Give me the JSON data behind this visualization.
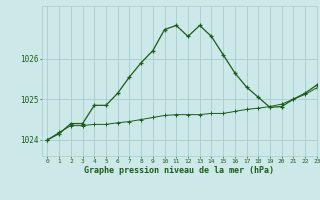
{
  "title": "Graphe pression niveau de la mer (hPa)",
  "background_color": "#cde8e8",
  "grid_color": "#aacccc",
  "line_color": "#1a5c1a",
  "x_labels": [
    "0",
    "1",
    "2",
    "3",
    "4",
    "5",
    "6",
    "7",
    "8",
    "9",
    "10",
    "11",
    "12",
    "13",
    "14",
    "15",
    "16",
    "17",
    "18",
    "19",
    "20",
    "21",
    "22",
    "23"
  ],
  "xlim": [
    -0.5,
    23
  ],
  "ylim": [
    1023.6,
    1027.3
  ],
  "yticks": [
    1024,
    1025,
    1026
  ],
  "line1_x": [
    0,
    1,
    2,
    3,
    4,
    5,
    6,
    7,
    8,
    9,
    10,
    11,
    12,
    13,
    14,
    15,
    16,
    17,
    18,
    19,
    20,
    21,
    22,
    23
  ],
  "line1_y": [
    1024.0,
    1024.15,
    1024.4,
    1024.4,
    1024.85,
    1024.85,
    1025.15,
    1025.55,
    1025.9,
    1026.2,
    1026.72,
    1026.82,
    1026.55,
    1026.82,
    1026.55,
    1026.1,
    1025.65,
    1025.3,
    1025.05,
    1024.8,
    1024.82,
    1025.0,
    1025.15,
    1025.35
  ],
  "line2_x": [
    0,
    1,
    2,
    3,
    4,
    5,
    6,
    7,
    8,
    9,
    10,
    11,
    12,
    13,
    14,
    15,
    16,
    17,
    18,
    19,
    20,
    21,
    22,
    23
  ],
  "line2_y": [
    1024.0,
    1024.18,
    1024.35,
    1024.35,
    1024.38,
    1024.38,
    1024.42,
    1024.45,
    1024.5,
    1024.55,
    1024.6,
    1024.62,
    1024.62,
    1024.62,
    1024.65,
    1024.65,
    1024.7,
    1024.75,
    1024.78,
    1024.82,
    1024.88,
    1025.0,
    1025.12,
    1025.28
  ]
}
